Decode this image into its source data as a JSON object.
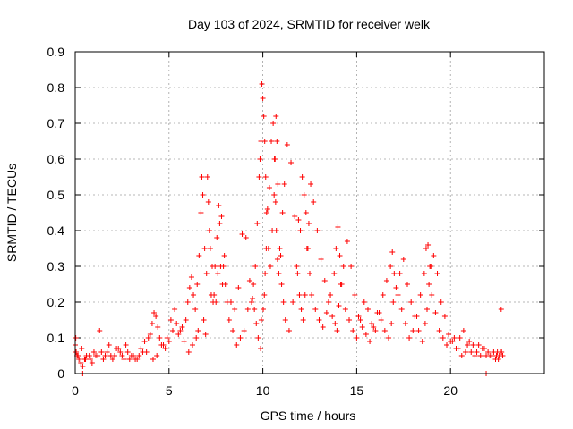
{
  "chart_data": {
    "type": "scatter",
    "title": "Day 103 of 2024, SRMTID for receiver welk",
    "xlabel": "GPS time / hours",
    "ylabel": "SRMTID / TECUs",
    "xlim": [
      0,
      25
    ],
    "ylim": [
      0,
      0.9
    ],
    "xticks": [
      0,
      5,
      10,
      15,
      20
    ],
    "xtick_labels": [
      "0",
      "5",
      "10",
      "15",
      "20"
    ],
    "yticks": [
      0,
      0.1,
      0.2,
      0.3,
      0.4,
      0.5,
      0.6,
      0.7,
      0.8,
      0.9
    ],
    "ytick_labels": [
      "0",
      "0.1",
      "0.2",
      "0.3",
      "0.4",
      "0.5",
      "0.6",
      "0.7",
      "0.8",
      "0.9"
    ],
    "grid": true,
    "marker": "+",
    "color": "#ff0000",
    "series": [
      {
        "name": "SRMTID",
        "x": [
          0.0,
          0.05,
          0.1,
          0.2,
          0.3,
          0.4,
          0.5,
          0.6,
          0.8,
          1.0,
          1.2,
          1.3,
          1.5,
          1.7,
          1.9,
          2.0,
          2.2,
          2.4,
          2.5,
          2.7,
          2.9,
          3.0,
          3.2,
          3.4,
          3.5,
          3.7,
          3.9,
          4.0,
          4.1,
          4.2,
          4.3,
          4.4,
          4.5,
          4.6,
          4.8,
          5.0,
          5.2,
          5.4,
          5.5,
          5.7,
          5.9,
          6.0,
          6.1,
          6.2,
          6.3,
          6.4,
          6.5,
          6.6,
          6.7,
          6.75,
          6.8,
          6.9,
          7.0,
          7.05,
          7.1,
          7.15,
          7.2,
          7.3,
          7.4,
          7.5,
          7.6,
          7.7,
          7.8,
          7.9,
          8.0,
          8.1,
          8.2,
          8.4,
          8.6,
          8.8,
          9.0,
          9.2,
          9.4,
          9.5,
          9.6,
          9.7,
          9.8,
          9.85,
          9.9,
          9.95,
          10.0,
          10.05,
          10.1,
          10.15,
          10.2,
          10.3,
          10.4,
          10.5,
          10.6,
          10.65,
          10.7,
          10.75,
          10.8,
          10.9,
          11.0,
          11.1,
          11.2,
          11.4,
          11.6,
          11.8,
          11.9,
          12.0,
          12.1,
          12.2,
          12.3,
          12.4,
          12.5,
          12.6,
          12.8,
          13.0,
          13.2,
          13.4,
          13.6,
          13.8,
          13.9,
          14.0,
          14.1,
          14.2,
          14.4,
          14.6,
          14.8,
          15.0,
          15.2,
          15.4,
          15.6,
          15.8,
          16.0,
          16.2,
          16.4,
          16.6,
          16.8,
          16.9,
          17.0,
          17.2,
          17.4,
          17.6,
          17.8,
          18.0,
          18.2,
          18.4,
          18.6,
          18.7,
          18.8,
          18.9,
          19.0,
          19.2,
          19.4,
          19.6,
          19.8,
          20.0,
          20.2,
          20.4,
          20.6,
          20.8,
          21.0,
          21.2,
          21.4,
          21.6,
          21.8,
          22.0,
          22.2,
          22.4,
          22.5,
          22.6,
          22.7,
          0.03,
          0.15,
          0.35,
          0.55,
          0.75,
          0.9,
          1.1,
          1.4,
          1.6,
          1.8,
          2.1,
          2.3,
          2.6,
          2.8,
          3.1,
          3.3,
          3.6,
          3.8,
          4.15,
          4.35,
          4.7,
          4.9,
          5.1,
          5.3,
          5.6,
          5.8,
          6.05,
          6.25,
          6.45,
          6.55,
          6.85,
          6.95,
          7.25,
          7.35,
          7.45,
          7.55,
          7.65,
          7.75,
          7.85,
          7.95,
          8.3,
          8.5,
          8.7,
          8.9,
          9.1,
          9.3,
          9.45,
          9.55,
          9.65,
          9.75,
          9.88,
          9.92,
          10.02,
          10.08,
          10.12,
          10.18,
          10.25,
          10.35,
          10.45,
          10.55,
          10.62,
          10.68,
          10.72,
          10.78,
          10.85,
          10.95,
          11.05,
          11.15,
          11.3,
          11.5,
          11.7,
          11.85,
          11.95,
          12.05,
          12.15,
          12.25,
          12.35,
          12.45,
          12.55,
          12.7,
          12.9,
          13.1,
          13.3,
          13.5,
          13.7,
          13.85,
          13.95,
          14.05,
          14.15,
          14.3,
          14.5,
          14.7,
          14.9,
          15.1,
          15.3,
          15.5,
          15.7,
          15.9,
          16.1,
          16.3,
          16.5,
          16.7,
          16.85,
          16.95,
          17.1,
          17.3,
          17.5,
          17.7,
          17.9,
          18.1,
          18.3,
          18.5,
          18.65,
          18.75,
          18.85,
          18.95,
          19.1,
          19.3,
          19.5,
          19.7,
          19.9,
          20.1,
          20.3,
          20.5,
          20.7,
          20.9,
          21.1,
          21.3,
          21.5,
          21.7,
          21.9,
          22.1,
          22.3,
          22.45,
          22.55,
          22.65,
          22.72,
          22.78,
          0.4,
          21.9
        ],
        "y": [
          0.08,
          0.06,
          0.05,
          0.04,
          0.03,
          0.02,
          0.04,
          0.05,
          0.04,
          0.06,
          0.05,
          0.12,
          0.04,
          0.06,
          0.05,
          0.04,
          0.07,
          0.06,
          0.05,
          0.08,
          0.04,
          0.05,
          0.04,
          0.05,
          0.07,
          0.09,
          0.1,
          0.11,
          0.14,
          0.17,
          0.16,
          0.13,
          0.1,
          0.08,
          0.07,
          0.09,
          0.12,
          0.14,
          0.11,
          0.13,
          0.15,
          0.2,
          0.24,
          0.27,
          0.22,
          0.18,
          0.25,
          0.33,
          0.45,
          0.55,
          0.5,
          0.35,
          0.28,
          0.55,
          0.48,
          0.4,
          0.35,
          0.3,
          0.22,
          0.2,
          0.28,
          0.42,
          0.44,
          0.3,
          0.25,
          0.2,
          0.15,
          0.12,
          0.08,
          0.1,
          0.12,
          0.18,
          0.2,
          0.25,
          0.3,
          0.42,
          0.55,
          0.6,
          0.65,
          0.81,
          0.77,
          0.72,
          0.65,
          0.55,
          0.45,
          0.35,
          0.3,
          0.4,
          0.5,
          0.6,
          0.72,
          0.65,
          0.53,
          0.35,
          0.25,
          0.2,
          0.15,
          0.12,
          0.2,
          0.3,
          0.43,
          0.4,
          0.55,
          0.5,
          0.45,
          0.35,
          0.28,
          0.22,
          0.18,
          0.15,
          0.13,
          0.17,
          0.22,
          0.28,
          0.35,
          0.41,
          0.33,
          0.25,
          0.18,
          0.15,
          0.12,
          0.1,
          0.15,
          0.2,
          0.18,
          0.14,
          0.12,
          0.17,
          0.22,
          0.26,
          0.3,
          0.34,
          0.28,
          0.22,
          0.18,
          0.14,
          0.1,
          0.12,
          0.16,
          0.22,
          0.28,
          0.35,
          0.36,
          0.3,
          0.22,
          0.17,
          0.12,
          0.1,
          0.08,
          0.09,
          0.1,
          0.07,
          0.05,
          0.06,
          0.09,
          0.08,
          0.06,
          0.05,
          0.07,
          0.06,
          0.05,
          0.04,
          0.06,
          0.05,
          0.18,
          0.1,
          0.05,
          0.07,
          0.04,
          0.05,
          0.03,
          0.05,
          0.06,
          0.05,
          0.08,
          0.05,
          0.07,
          0.04,
          0.06,
          0.05,
          0.04,
          0.06,
          0.06,
          0.04,
          0.05,
          0.08,
          0.1,
          0.15,
          0.18,
          0.12,
          0.09,
          0.06,
          0.08,
          0.1,
          0.12,
          0.15,
          0.11,
          0.22,
          0.2,
          0.3,
          0.38,
          0.47,
          0.3,
          0.25,
          0.33,
          0.2,
          0.18,
          0.24,
          0.39,
          0.38,
          0.26,
          0.21,
          0.18,
          0.14,
          0.1,
          0.07,
          0.15,
          0.18,
          0.22,
          0.28,
          0.35,
          0.46,
          0.52,
          0.65,
          0.7,
          0.6,
          0.48,
          0.4,
          0.32,
          0.28,
          0.33,
          0.45,
          0.53,
          0.64,
          0.59,
          0.44,
          0.28,
          0.22,
          0.18,
          0.15,
          0.22,
          0.35,
          0.42,
          0.53,
          0.48,
          0.4,
          0.32,
          0.26,
          0.2,
          0.16,
          0.14,
          0.12,
          0.19,
          0.25,
          0.3,
          0.37,
          0.3,
          0.22,
          0.16,
          0.13,
          0.11,
          0.09,
          0.13,
          0.17,
          0.15,
          0.12,
          0.1,
          0.14,
          0.2,
          0.24,
          0.28,
          0.32,
          0.25,
          0.2,
          0.16,
          0.12,
          0.09,
          0.14,
          0.18,
          0.25,
          0.3,
          0.33,
          0.28,
          0.2,
          0.16,
          0.11,
          0.09,
          0.07,
          0.1,
          0.12,
          0.08,
          0.06,
          0.05,
          0.08,
          0.07,
          0.05,
          0.05,
          0.06,
          0.05,
          0.04,
          0.06,
          0.06,
          0.05,
          0.0,
          0.0
        ]
      }
    ]
  }
}
